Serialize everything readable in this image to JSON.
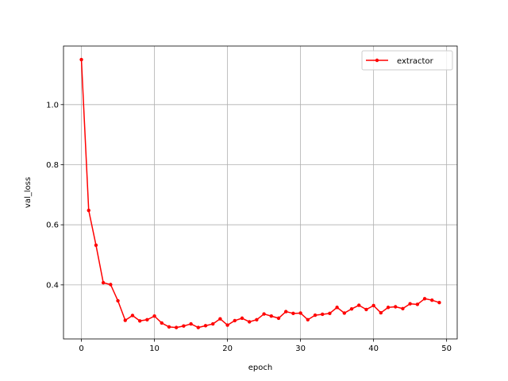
{
  "chart_data": {
    "type": "line",
    "xlabel": "epoch",
    "ylabel": "val_loss",
    "xlim": [
      -2.45,
      51.45
    ],
    "ylim": [
      0.22,
      1.195
    ],
    "xticks": [
      0,
      10,
      20,
      30,
      40,
      50
    ],
    "yticks": [
      0.4,
      0.6,
      0.8,
      1.0
    ],
    "xtick_labels": [
      "0",
      "10",
      "20",
      "30",
      "40",
      "50"
    ],
    "ytick_labels": [
      "0.4",
      "0.6",
      "0.8",
      "1.0"
    ],
    "grid": true,
    "legend_position": "top-right",
    "series": [
      {
        "name": "extractor",
        "color": "#ff0000",
        "marker": "circle",
        "x": [
          0,
          1,
          2,
          3,
          4,
          5,
          6,
          7,
          8,
          9,
          10,
          11,
          12,
          13,
          14,
          15,
          16,
          17,
          18,
          19,
          20,
          21,
          22,
          23,
          24,
          25,
          26,
          27,
          28,
          29,
          30,
          31,
          32,
          33,
          34,
          35,
          36,
          37,
          38,
          39,
          40,
          41,
          42,
          43,
          44,
          45,
          46,
          47,
          48,
          49
        ],
        "values": [
          1.15,
          0.648,
          0.532,
          0.407,
          0.401,
          0.347,
          0.282,
          0.298,
          0.28,
          0.284,
          0.296,
          0.273,
          0.26,
          0.258,
          0.263,
          0.27,
          0.258,
          0.264,
          0.27,
          0.287,
          0.266,
          0.281,
          0.289,
          0.277,
          0.284,
          0.303,
          0.296,
          0.289,
          0.311,
          0.305,
          0.306,
          0.284,
          0.299,
          0.302,
          0.305,
          0.325,
          0.306,
          0.32,
          0.332,
          0.318,
          0.331,
          0.307,
          0.325,
          0.327,
          0.321,
          0.337,
          0.335,
          0.354,
          0.349,
          0.341
        ]
      }
    ]
  }
}
